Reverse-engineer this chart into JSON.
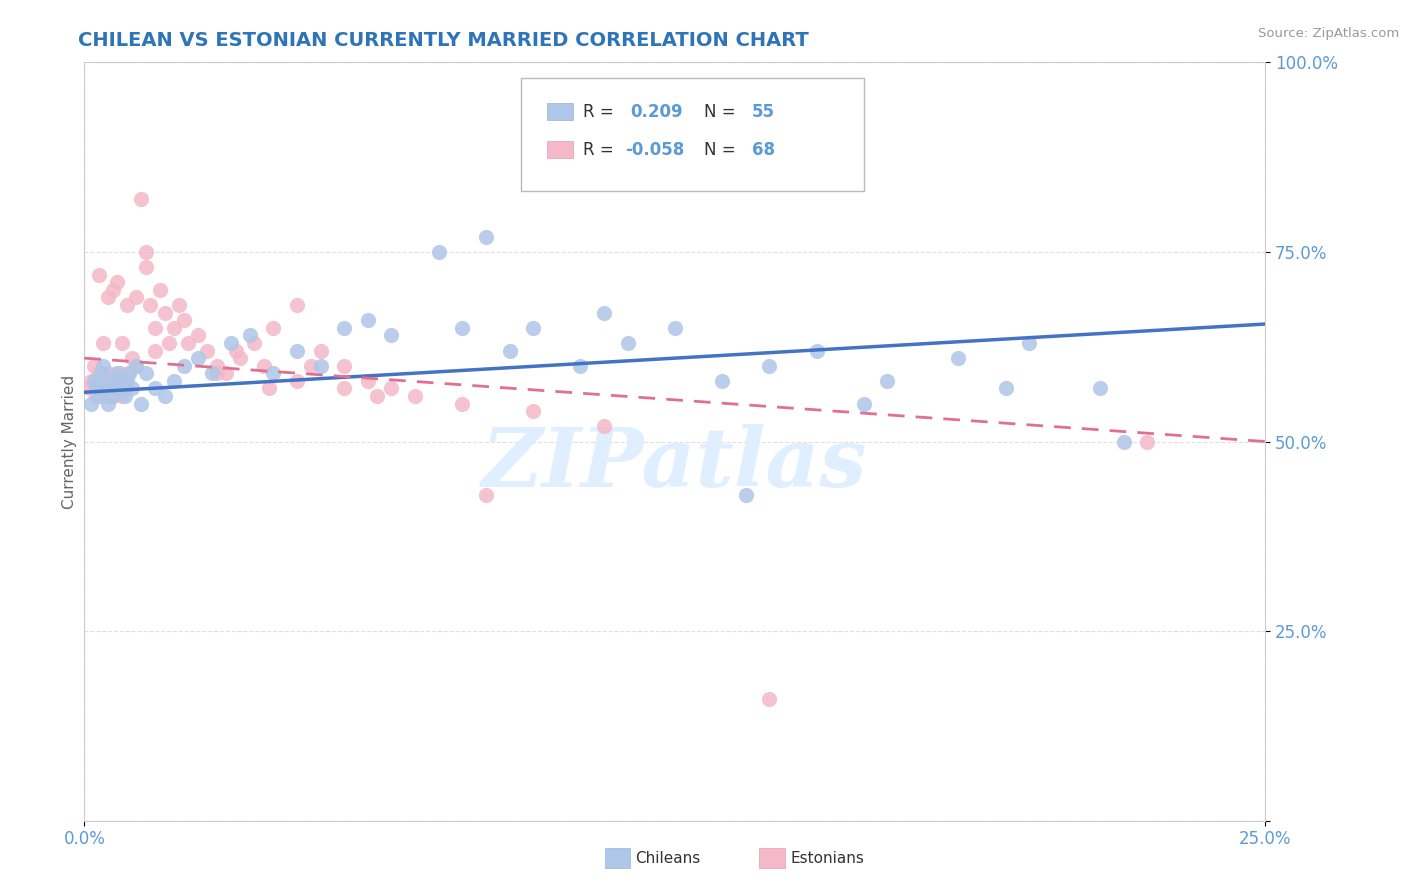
{
  "title": "CHILEAN VS ESTONIAN CURRENTLY MARRIED CORRELATION CHART",
  "source_text": "Source: ZipAtlas.com",
  "ylabel": "Currently Married",
  "xlim": [
    0.0,
    25.0
  ],
  "ylim": [
    0.0,
    100.0
  ],
  "chileans_color": "#aec6e8",
  "estonians_color": "#f4b8c8",
  "chileans_line_color": "#4472c4",
  "estonians_line_color": "#e07090",
  "watermark_text": "ZIPatlas",
  "watermark_color": "#ddeeff",
  "background_color": "#ffffff",
  "grid_color": "#cccccc",
  "title_color": "#2E74B8",
  "axis_label_color": "#5b9bd5",
  "legend_line1": "R =  0.209   N = 55",
  "legend_line2": "R = -0.058   N = 68",
  "chileans_x": [
    0.15,
    0.2,
    0.25,
    0.3,
    0.35,
    0.4,
    0.45,
    0.5,
    0.55,
    0.6,
    0.65,
    0.7,
    0.75,
    0.8,
    0.85,
    0.9,
    0.95,
    1.0,
    1.1,
    1.2,
    1.3,
    1.5,
    1.7,
    1.9,
    2.1,
    2.4,
    2.7,
    3.1,
    3.5,
    4.0,
    4.5,
    5.0,
    5.5,
    6.0,
    6.5,
    7.5,
    8.5,
    9.5,
    11.0,
    12.5,
    14.0,
    15.5,
    17.0,
    18.5,
    20.0,
    22.0,
    10.5,
    13.5,
    16.5,
    19.5,
    21.5,
    8.0,
    9.0,
    11.5,
    14.5
  ],
  "chileans_y": [
    55,
    58,
    57,
    56,
    59,
    60,
    57,
    55,
    58,
    56,
    57,
    59,
    58,
    57,
    56,
    58,
    59,
    57,
    60,
    55,
    59,
    57,
    56,
    58,
    60,
    61,
    59,
    63,
    64,
    59,
    62,
    60,
    65,
    66,
    64,
    75,
    77,
    65,
    67,
    65,
    43,
    62,
    58,
    61,
    63,
    50,
    60,
    58,
    55,
    57,
    57,
    65,
    62,
    63,
    60
  ],
  "estonians_x": [
    0.1,
    0.15,
    0.2,
    0.25,
    0.3,
    0.35,
    0.4,
    0.45,
    0.5,
    0.55,
    0.6,
    0.65,
    0.7,
    0.75,
    0.8,
    0.85,
    0.9,
    0.95,
    1.0,
    1.1,
    1.2,
    1.3,
    1.4,
    1.5,
    1.6,
    1.7,
    1.8,
    1.9,
    2.0,
    2.2,
    2.4,
    2.6,
    2.8,
    3.0,
    3.3,
    3.6,
    4.0,
    4.5,
    5.0,
    5.5,
    6.0,
    6.5,
    7.0,
    8.0,
    9.5,
    11.0,
    3.8,
    2.1,
    1.3,
    0.5,
    0.6,
    0.7,
    0.9,
    1.1,
    4.5,
    5.5,
    0.3,
    3.2,
    4.8,
    6.2,
    1.5,
    2.8,
    3.9,
    0.8,
    8.5,
    0.4,
    14.5,
    22.5
  ],
  "estonians_y": [
    57,
    58,
    60,
    56,
    59,
    57,
    58,
    56,
    59,
    57,
    56,
    58,
    57,
    59,
    56,
    58,
    57,
    59,
    61,
    60,
    82,
    75,
    68,
    65,
    70,
    67,
    63,
    65,
    68,
    63,
    64,
    62,
    60,
    59,
    61,
    63,
    65,
    68,
    62,
    60,
    58,
    57,
    56,
    55,
    54,
    52,
    60,
    66,
    73,
    69,
    70,
    71,
    68,
    69,
    58,
    57,
    72,
    62,
    60,
    56,
    62,
    59,
    57,
    63,
    43,
    63,
    16,
    50
  ],
  "trend_chileans_x0": 0.0,
  "trend_chileans_x1": 25.0,
  "trend_chileans_y0": 56.5,
  "trend_chileans_y1": 65.5,
  "trend_estonians_x0": 0.0,
  "trend_estonians_x1": 25.0,
  "trend_estonians_y0": 61.0,
  "trend_estonians_y1": 50.0
}
